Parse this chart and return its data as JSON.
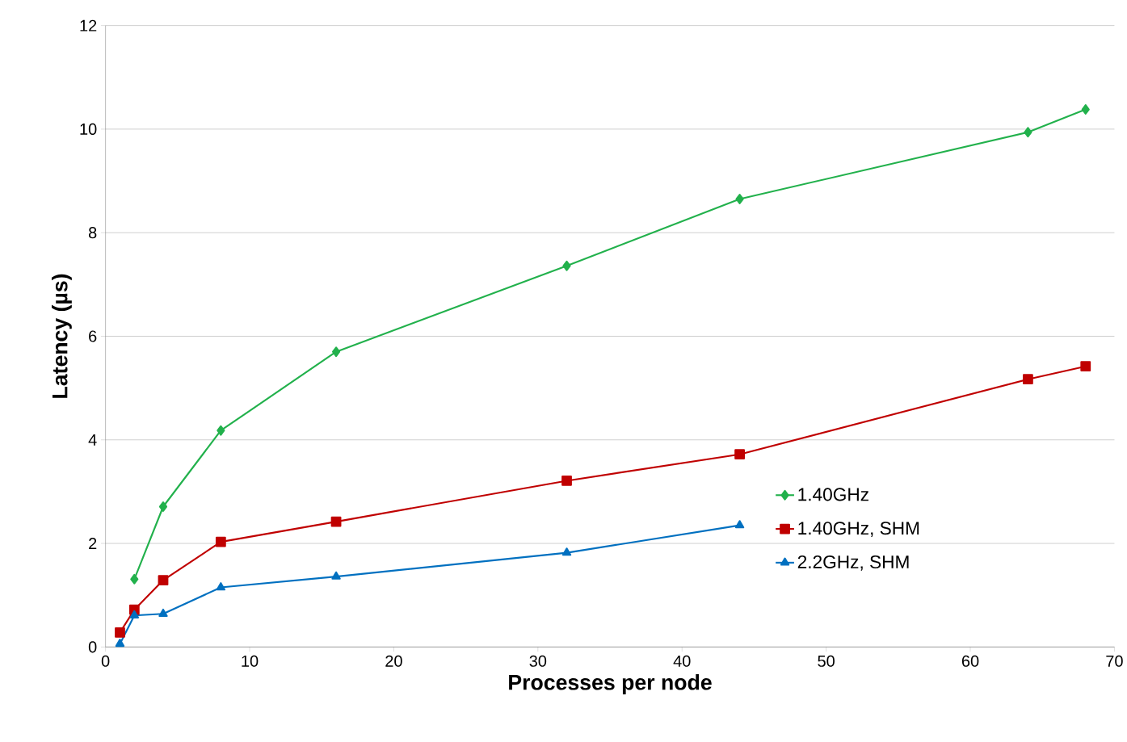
{
  "chart_data": {
    "type": "line",
    "xlabel": "Processes per node",
    "ylabel": "Latency (µs)",
    "x": [
      1,
      2,
      4,
      8,
      16,
      32,
      44,
      64,
      68
    ],
    "series": [
      {
        "name": "1.40GHz",
        "color": "#22b14c",
        "marker": "diamond",
        "values": [
          null,
          1.31,
          2.71,
          4.18,
          5.7,
          7.36,
          8.65,
          9.94,
          10.38
        ]
      },
      {
        "name": "1.40GHz, SHM",
        "color": "#c00000",
        "marker": "square",
        "values": [
          0.28,
          0.72,
          1.29,
          2.03,
          2.42,
          3.21,
          3.72,
          5.17,
          5.42
        ]
      },
      {
        "name": "2.2GHz, SHM",
        "color": "#0070c0",
        "marker": "triangle",
        "values": [
          0.06,
          0.61,
          0.64,
          1.15,
          1.36,
          1.82,
          2.35,
          null,
          null
        ]
      }
    ],
    "xlim": [
      0,
      70
    ],
    "xticks": [
      0,
      10,
      20,
      30,
      40,
      50,
      60,
      70
    ],
    "ylim": [
      0,
      12
    ],
    "yticks": [
      0,
      2,
      4,
      6,
      8,
      10,
      12
    ],
    "grid": "y",
    "legend": "right"
  }
}
